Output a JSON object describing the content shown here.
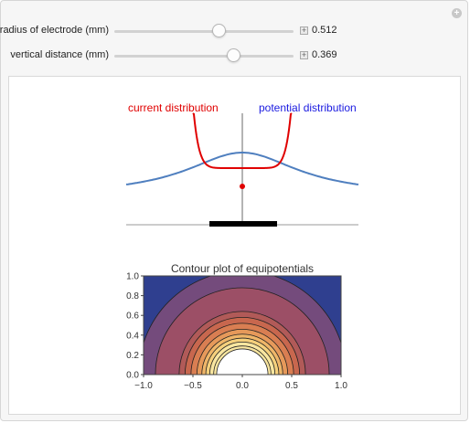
{
  "controls": [
    {
      "label": "radius of electrode (mm)",
      "value": "0.512"
    },
    {
      "label": "vertical distance (mm)",
      "value": "0.369"
    }
  ],
  "top_plot": {
    "current_label": "current distribution",
    "potential_label": "potential distribution"
  },
  "chart_data": {
    "type": "contour",
    "title": "Contour plot of equipotentials",
    "xlim": [
      -1.0,
      1.0
    ],
    "ylim": [
      0.0,
      1.0
    ],
    "x_ticks": [
      "−1.0",
      "−0.5",
      "0.0",
      "0.5",
      "1.0"
    ],
    "y_ticks": [
      "0.0",
      "0.2",
      "0.4",
      "0.6",
      "0.8",
      "1.0"
    ],
    "contour_radii": [
      1.05,
      0.88,
      0.64,
      0.58,
      0.52,
      0.46,
      0.41,
      0.37,
      0.33,
      0.29
    ],
    "contour_colors": [
      "#2f3f8f",
      "#744b7c",
      "#9c4f66",
      "#b15a58",
      "#c8674e",
      "#d97e52",
      "#e6995a",
      "#efb669",
      "#f5d07c",
      "#f9e6a0"
    ],
    "inner_color": "#ffffff"
  },
  "colors": {
    "current": "#e00000",
    "potential": "#4f7fbf"
  }
}
